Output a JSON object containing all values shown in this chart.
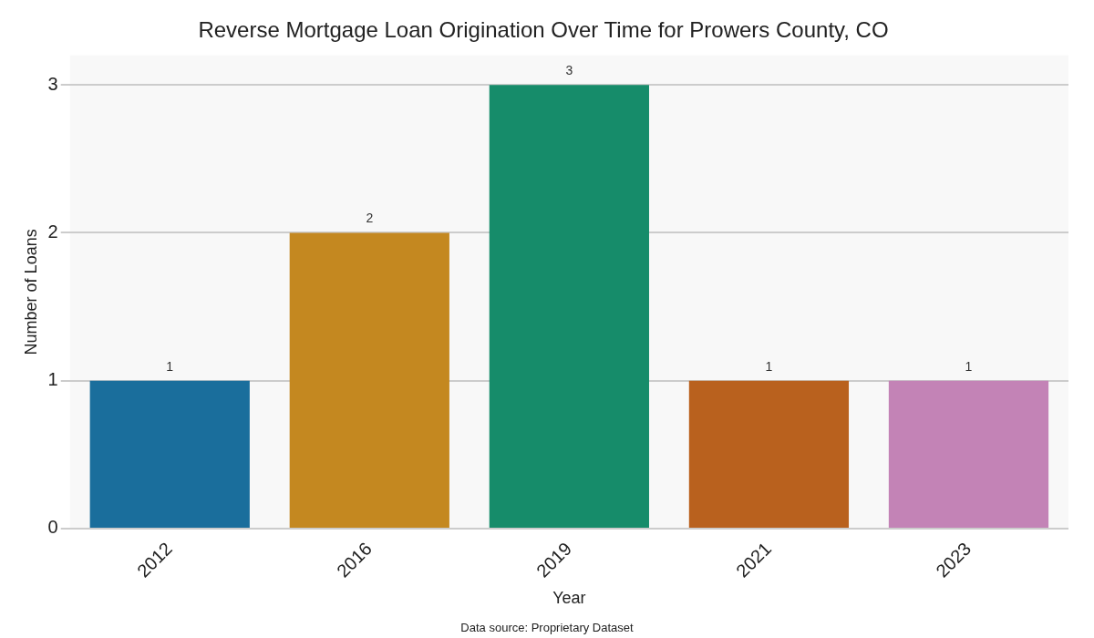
{
  "chart_data": {
    "type": "bar",
    "title": "Reverse Mortgage Loan Origination Over Time for Prowers County, CO",
    "xlabel": "Year",
    "ylabel": "Number of Loans",
    "categories": [
      "2012",
      "2016",
      "2019",
      "2021",
      "2023"
    ],
    "values": [
      1,
      2,
      3,
      1,
      1
    ],
    "colors": [
      "#1a6e9c",
      "#c48820",
      "#168c6a",
      "#b9611e",
      "#c383b6"
    ],
    "ylim": [
      0,
      3.2
    ],
    "yticks": [
      0,
      1,
      2,
      3
    ],
    "grid": "y",
    "data_labels": true,
    "legend": false,
    "annotations": [
      "Data source: Proprietary Dataset"
    ]
  }
}
